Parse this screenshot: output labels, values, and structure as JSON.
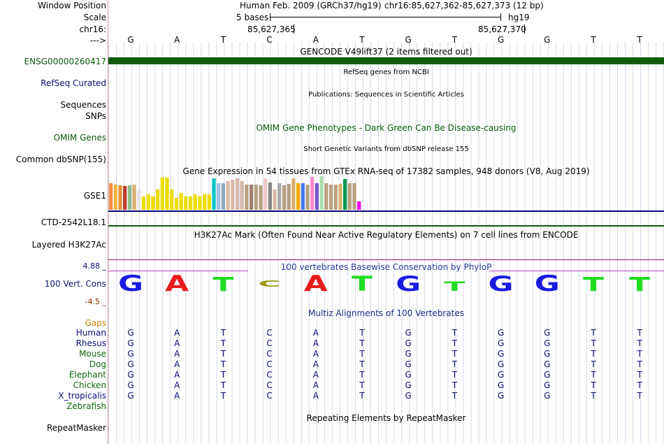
{
  "header": {
    "window_position_label": "Window Position",
    "scale_label": "Scale",
    "chrom_label": "chr16:",
    "strand_label": "--->",
    "assembly_text": "Human Feb. 2009 (GRCh37/hg19)",
    "position_text": "chr16:85,627,362-85,627,373 (12 bp)",
    "scale_text": "5 bases",
    "scale_db": "hg19",
    "coord_left": "85,627,365",
    "coord_right": "85,627,370"
  },
  "bases": [
    "G",
    "A",
    "T",
    "C",
    "A",
    "T",
    "G",
    "T",
    "G",
    "G",
    "T",
    "T"
  ],
  "tracks": {
    "gencode_title": "GENCODE V49lift37 (2 items filtered out)",
    "gencode_item": "ENSG00000260417",
    "refseq_title": "RefSeq genes from NCBI",
    "refseq_label": "RefSeq Curated",
    "pubs_title": "Publications: Sequences in Scientific Articles",
    "sequences_label": "Sequences",
    "snps_label": "SNPs",
    "omim_title": "OMIM Gene Phenotypes - Dark Green Can Be Disease-causing",
    "omim_label": "OMIM Genes",
    "dbsnp_title": "Short Genetic Variants from dbSNP release 155",
    "dbsnp_label": "Common dbSNP(155)",
    "gtex_title": "Gene Expression in 54 tissues from GTEx RNA-seq of 17382 samples, 948 donors (V8, Aug 2019)",
    "gtex_label": "GSE1",
    "ctd_label": "CTD-2542L18.1",
    "h3k27ac_title": "H3K27Ac Mark (Often Found Near Active Regulatory Elements) on 7 cell lines from ENCODE",
    "h3k27ac_label": "Layered H3K27Ac",
    "cons_top": "4.88 _",
    "cons_title": "100 vertebrates Basewise Conservation by PhyloP",
    "cons_label": "100 Vert. Cons",
    "cons_bottom": "-4.5 _",
    "multiz_title": "Multiz Alignments of 100 Vertebrates",
    "gaps_label": "Gaps",
    "repeat_title": "Repeating Elements by RepeatMasker",
    "repeat_label": "RepeatMasker"
  },
  "species": [
    {
      "name": "Human",
      "bases": "GATCATGTGGTT"
    },
    {
      "name": "Rhesus",
      "bases": "GATCATGTGGTT"
    },
    {
      "name": "Mouse",
      "bases": "GATCATGTGGTT"
    },
    {
      "name": "Dog",
      "bases": "GATCATGTGGTT"
    },
    {
      "name": "Elephant",
      "bases": "GATCATGTGGTT"
    },
    {
      "name": "Chicken",
      "bases": "GATCATGTGGTT"
    },
    {
      "name": "X_tropicalis",
      "bases": "GATCATGTGGTT"
    },
    {
      "name": "Zebrafish",
      "bases": ""
    }
  ],
  "gtex_bars": [
    {
      "color": "#ff8f3f",
      "level": 0.8
    },
    {
      "color": "#f5b042",
      "level": 0.75
    },
    {
      "color": "#e8913a",
      "level": 0.73
    },
    {
      "color": "#c0392b",
      "level": 0.7
    },
    {
      "color": "#8fbc8f",
      "level": 0.72
    },
    {
      "color": "#d8b070",
      "level": 0.74
    },
    {
      "color": "#e5e5e5",
      "level": 0.63
    },
    {
      "color": "#eedd00",
      "level": 0.4
    },
    {
      "color": "#eedd00",
      "level": 0.45
    },
    {
      "color": "#eedd00",
      "level": 0.4
    },
    {
      "color": "#eedd00",
      "level": 0.6
    },
    {
      "color": "#eedd00",
      "level": 0.95
    },
    {
      "color": "#eedd00",
      "level": 0.95
    },
    {
      "color": "#eedd00",
      "level": 0.6
    },
    {
      "color": "#eedd00",
      "level": 0.35
    },
    {
      "color": "#eedd00",
      "level": 0.5
    },
    {
      "color": "#eedd00",
      "level": 0.4
    },
    {
      "color": "#eedd00",
      "level": 0.4
    },
    {
      "color": "#eedd00",
      "level": 0.45
    },
    {
      "color": "#eedd00",
      "level": 0.4
    },
    {
      "color": "#eedd00",
      "level": 0.45
    },
    {
      "color": "#eedd00",
      "level": 0.45
    },
    {
      "color": "#00c8c8",
      "level": 0.93
    },
    {
      "color": "#9fbfdf",
      "level": 0.8
    },
    {
      "color": "#88aabb",
      "level": 0.8
    },
    {
      "color": "#d8b8a8",
      "level": 0.86
    },
    {
      "color": "#d8b8a8",
      "level": 0.9
    },
    {
      "color": "#d8b8a8",
      "level": 0.93
    },
    {
      "color": "#d8b8a8",
      "level": 0.86
    },
    {
      "color": "#b8a080",
      "level": 0.76
    },
    {
      "color": "#a08070",
      "level": 0.75
    },
    {
      "color": "#b8a080",
      "level": 0.75
    },
    {
      "color": "#b8a080",
      "level": 0.73
    },
    {
      "color": "#f0c8c8",
      "level": 0.93
    },
    {
      "color": "#888888",
      "level": 0.81
    },
    {
      "color": "#d8b8a8",
      "level": 0.6
    },
    {
      "color": "#aaaaaa",
      "level": 0.8
    },
    {
      "color": "#b8a080",
      "level": 0.73
    },
    {
      "color": "#b8a080",
      "level": 0.78
    },
    {
      "color": "#d8b070",
      "level": 0.93
    },
    {
      "color": "#ffaa00",
      "level": 0.8
    },
    {
      "color": "#4477ee",
      "level": 0.8
    },
    {
      "color": "#b8a080",
      "level": 0.75
    },
    {
      "color": "#ff88cc",
      "level": 0.98
    },
    {
      "color": "#7755cc",
      "level": 0.8
    },
    {
      "color": "#aaddaa",
      "level": 1.0
    },
    {
      "color": "#b8a080",
      "level": 0.8
    },
    {
      "color": "#b8a080",
      "level": 0.76
    },
    {
      "color": "#b8a080",
      "level": 0.76
    },
    {
      "color": "#d8b070",
      "level": 0.78
    },
    {
      "color": "#00994c",
      "level": 0.92
    },
    {
      "color": "#b8a080",
      "level": 0.8
    },
    {
      "color": "#b8a080",
      "level": 0.8
    },
    {
      "color": "#ee00ee",
      "level": 0.25
    }
  ],
  "conservation_colors": {
    "G": "#1a1ae0",
    "A": "#e81c1c",
    "T": "#22dd22",
    "C": "#9b9b10"
  },
  "conservation_levels": [
    1.0,
    1.0,
    0.9,
    -0.4,
    1.0,
    0.95,
    0.95,
    0.6,
    0.95,
    1.0,
    0.9,
    0.9
  ],
  "colors": {
    "gencode": "#0c5c0c",
    "refseq": "#0c0c78",
    "omim": "#0a5a0a",
    "gaps": "#d08000",
    "cons_axis": "#0c0c78",
    "cons_neg": "#8b2a00"
  }
}
